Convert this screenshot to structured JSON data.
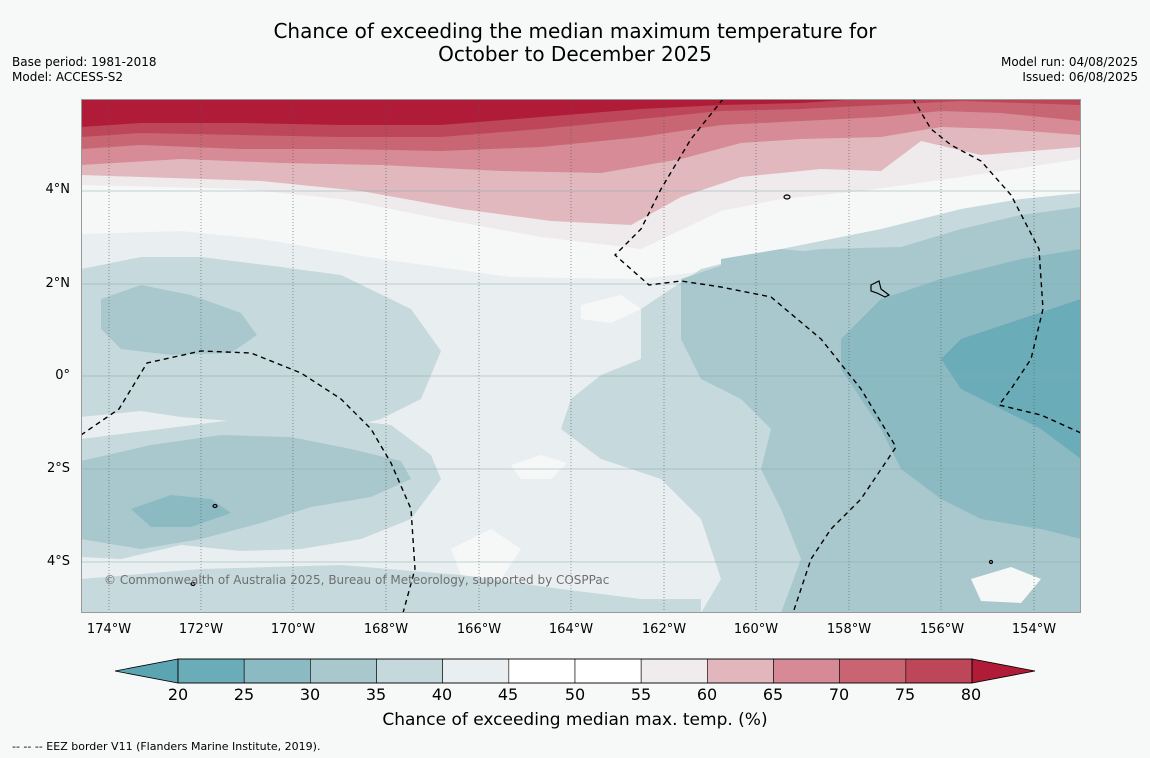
{
  "title": {
    "line1": "Chance of exceeding the median maximum temperature for",
    "line2": "October to December 2025"
  },
  "meta_left": {
    "base_period": "Base period: 1981-2018",
    "model": "Model: ACCESS-S2"
  },
  "meta_right": {
    "model_run": "Model run: 04/08/2025",
    "issued": "Issued: 06/08/2025"
  },
  "map": {
    "lat_labels": [
      "4°N",
      "2°N",
      "0°",
      "2°S",
      "4°S"
    ],
    "lon_labels": [
      "174°W",
      "172°W",
      "170°W",
      "168°W",
      "166°W",
      "164°W",
      "162°W",
      "160°W",
      "158°W",
      "156°W",
      "154°W"
    ],
    "copyright": "© Commonwealth of Australia 2025, Bureau of Meteorology, supported by COSPPac"
  },
  "colorbar": {
    "ticks": [
      "20",
      "25",
      "30",
      "35",
      "40",
      "45",
      "50",
      "55",
      "60",
      "65",
      "70",
      "75",
      "80"
    ],
    "colors": [
      "#6aadb9",
      "#8cbac3",
      "#a9c8cd",
      "#c5d9dd",
      "#e9eff1",
      "#ffffff",
      "#ffffff",
      "#f0ebec",
      "#e1b7bd",
      "#d68a95",
      "#c96572",
      "#bd4658"
    ],
    "under_color": "#5ba4b1",
    "over_color": "#b01c38",
    "label": "Chance of exceeding median max. temp. (%)"
  },
  "footnote": "-- -- -- EEZ border V11 (Flanders Marine Institute, 2019)."
}
